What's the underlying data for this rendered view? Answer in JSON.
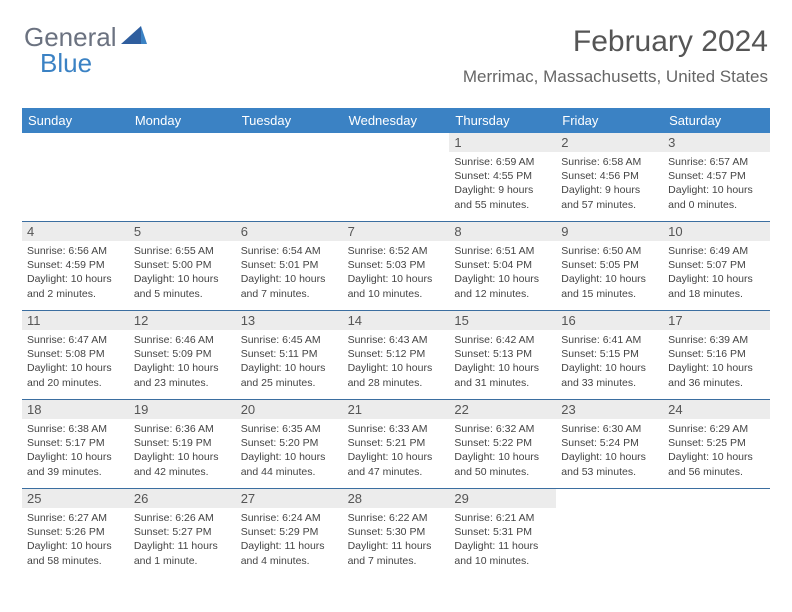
{
  "logo": {
    "text1": "General",
    "text2": "Blue"
  },
  "title": "February 2024",
  "location": "Merrimac, Massachusetts, United States",
  "colors": {
    "header_bg": "#3b82c4",
    "header_fg": "#ffffff",
    "daynum_bg": "#ececec",
    "rule": "#3b6ea0"
  },
  "day_names": [
    "Sunday",
    "Monday",
    "Tuesday",
    "Wednesday",
    "Thursday",
    "Friday",
    "Saturday"
  ],
  "weeks": [
    [
      {
        "n": "",
        "l1": "",
        "l2": "",
        "l3": "",
        "l4": ""
      },
      {
        "n": "",
        "l1": "",
        "l2": "",
        "l3": "",
        "l4": ""
      },
      {
        "n": "",
        "l1": "",
        "l2": "",
        "l3": "",
        "l4": ""
      },
      {
        "n": "",
        "l1": "",
        "l2": "",
        "l3": "",
        "l4": ""
      },
      {
        "n": "1",
        "l1": "Sunrise: 6:59 AM",
        "l2": "Sunset: 4:55 PM",
        "l3": "Daylight: 9 hours",
        "l4": "and 55 minutes."
      },
      {
        "n": "2",
        "l1": "Sunrise: 6:58 AM",
        "l2": "Sunset: 4:56 PM",
        "l3": "Daylight: 9 hours",
        "l4": "and 57 minutes."
      },
      {
        "n": "3",
        "l1": "Sunrise: 6:57 AM",
        "l2": "Sunset: 4:57 PM",
        "l3": "Daylight: 10 hours",
        "l4": "and 0 minutes."
      }
    ],
    [
      {
        "n": "4",
        "l1": "Sunrise: 6:56 AM",
        "l2": "Sunset: 4:59 PM",
        "l3": "Daylight: 10 hours",
        "l4": "and 2 minutes."
      },
      {
        "n": "5",
        "l1": "Sunrise: 6:55 AM",
        "l2": "Sunset: 5:00 PM",
        "l3": "Daylight: 10 hours",
        "l4": "and 5 minutes."
      },
      {
        "n": "6",
        "l1": "Sunrise: 6:54 AM",
        "l2": "Sunset: 5:01 PM",
        "l3": "Daylight: 10 hours",
        "l4": "and 7 minutes."
      },
      {
        "n": "7",
        "l1": "Sunrise: 6:52 AM",
        "l2": "Sunset: 5:03 PM",
        "l3": "Daylight: 10 hours",
        "l4": "and 10 minutes."
      },
      {
        "n": "8",
        "l1": "Sunrise: 6:51 AM",
        "l2": "Sunset: 5:04 PM",
        "l3": "Daylight: 10 hours",
        "l4": "and 12 minutes."
      },
      {
        "n": "9",
        "l1": "Sunrise: 6:50 AM",
        "l2": "Sunset: 5:05 PM",
        "l3": "Daylight: 10 hours",
        "l4": "and 15 minutes."
      },
      {
        "n": "10",
        "l1": "Sunrise: 6:49 AM",
        "l2": "Sunset: 5:07 PM",
        "l3": "Daylight: 10 hours",
        "l4": "and 18 minutes."
      }
    ],
    [
      {
        "n": "11",
        "l1": "Sunrise: 6:47 AM",
        "l2": "Sunset: 5:08 PM",
        "l3": "Daylight: 10 hours",
        "l4": "and 20 minutes."
      },
      {
        "n": "12",
        "l1": "Sunrise: 6:46 AM",
        "l2": "Sunset: 5:09 PM",
        "l3": "Daylight: 10 hours",
        "l4": "and 23 minutes."
      },
      {
        "n": "13",
        "l1": "Sunrise: 6:45 AM",
        "l2": "Sunset: 5:11 PM",
        "l3": "Daylight: 10 hours",
        "l4": "and 25 minutes."
      },
      {
        "n": "14",
        "l1": "Sunrise: 6:43 AM",
        "l2": "Sunset: 5:12 PM",
        "l3": "Daylight: 10 hours",
        "l4": "and 28 minutes."
      },
      {
        "n": "15",
        "l1": "Sunrise: 6:42 AM",
        "l2": "Sunset: 5:13 PM",
        "l3": "Daylight: 10 hours",
        "l4": "and 31 minutes."
      },
      {
        "n": "16",
        "l1": "Sunrise: 6:41 AM",
        "l2": "Sunset: 5:15 PM",
        "l3": "Daylight: 10 hours",
        "l4": "and 33 minutes."
      },
      {
        "n": "17",
        "l1": "Sunrise: 6:39 AM",
        "l2": "Sunset: 5:16 PM",
        "l3": "Daylight: 10 hours",
        "l4": "and 36 minutes."
      }
    ],
    [
      {
        "n": "18",
        "l1": "Sunrise: 6:38 AM",
        "l2": "Sunset: 5:17 PM",
        "l3": "Daylight: 10 hours",
        "l4": "and 39 minutes."
      },
      {
        "n": "19",
        "l1": "Sunrise: 6:36 AM",
        "l2": "Sunset: 5:19 PM",
        "l3": "Daylight: 10 hours",
        "l4": "and 42 minutes."
      },
      {
        "n": "20",
        "l1": "Sunrise: 6:35 AM",
        "l2": "Sunset: 5:20 PM",
        "l3": "Daylight: 10 hours",
        "l4": "and 44 minutes."
      },
      {
        "n": "21",
        "l1": "Sunrise: 6:33 AM",
        "l2": "Sunset: 5:21 PM",
        "l3": "Daylight: 10 hours",
        "l4": "and 47 minutes."
      },
      {
        "n": "22",
        "l1": "Sunrise: 6:32 AM",
        "l2": "Sunset: 5:22 PM",
        "l3": "Daylight: 10 hours",
        "l4": "and 50 minutes."
      },
      {
        "n": "23",
        "l1": "Sunrise: 6:30 AM",
        "l2": "Sunset: 5:24 PM",
        "l3": "Daylight: 10 hours",
        "l4": "and 53 minutes."
      },
      {
        "n": "24",
        "l1": "Sunrise: 6:29 AM",
        "l2": "Sunset: 5:25 PM",
        "l3": "Daylight: 10 hours",
        "l4": "and 56 minutes."
      }
    ],
    [
      {
        "n": "25",
        "l1": "Sunrise: 6:27 AM",
        "l2": "Sunset: 5:26 PM",
        "l3": "Daylight: 10 hours",
        "l4": "and 58 minutes."
      },
      {
        "n": "26",
        "l1": "Sunrise: 6:26 AM",
        "l2": "Sunset: 5:27 PM",
        "l3": "Daylight: 11 hours",
        "l4": "and 1 minute."
      },
      {
        "n": "27",
        "l1": "Sunrise: 6:24 AM",
        "l2": "Sunset: 5:29 PM",
        "l3": "Daylight: 11 hours",
        "l4": "and 4 minutes."
      },
      {
        "n": "28",
        "l1": "Sunrise: 6:22 AM",
        "l2": "Sunset: 5:30 PM",
        "l3": "Daylight: 11 hours",
        "l4": "and 7 minutes."
      },
      {
        "n": "29",
        "l1": "Sunrise: 6:21 AM",
        "l2": "Sunset: 5:31 PM",
        "l3": "Daylight: 11 hours",
        "l4": "and 10 minutes."
      },
      {
        "n": "",
        "l1": "",
        "l2": "",
        "l3": "",
        "l4": ""
      },
      {
        "n": "",
        "l1": "",
        "l2": "",
        "l3": "",
        "l4": ""
      }
    ]
  ]
}
